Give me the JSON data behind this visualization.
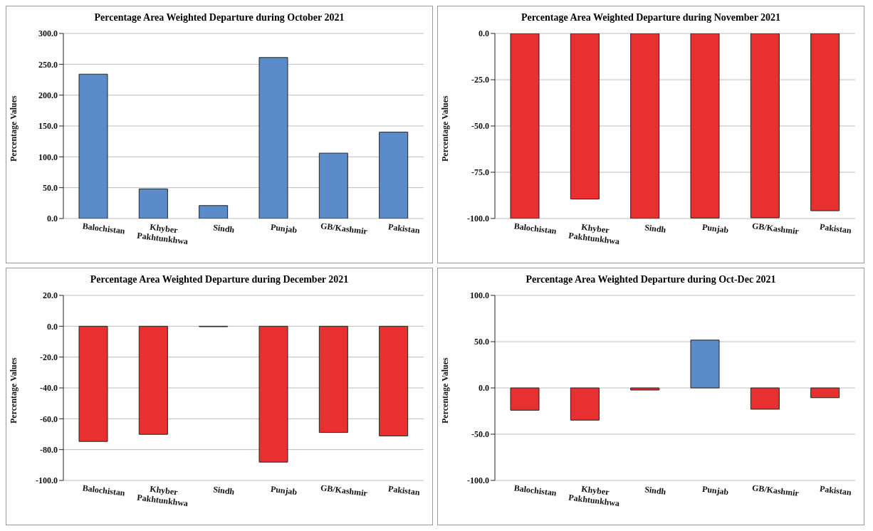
{
  "chart_data": [
    {
      "type": "bar",
      "title": "Percentage Area Weighted Departure during October 2021",
      "ylabel": "Percentage Values",
      "categories": [
        "Balochistan",
        "Khyber Pakhtunkhwa",
        "Sindh",
        "Punjab",
        "GB/Kashmir",
        "Pakistan"
      ],
      "values": [
        234,
        48,
        21,
        261,
        106,
        140
      ],
      "colors": [
        "#5b8bc8",
        "#5b8bc8",
        "#5b8bc8",
        "#5b8bc8",
        "#5b8bc8",
        "#5b8bc8"
      ],
      "ylim": [
        0,
        300
      ],
      "yticks": [
        {
          "value": 0,
          "label": "0.0"
        },
        {
          "value": 50,
          "label": "50.0"
        },
        {
          "value": 100,
          "label": "100.0"
        },
        {
          "value": 150,
          "label": "150.0"
        },
        {
          "value": 200,
          "label": "200.0"
        },
        {
          "value": 250,
          "label": "250.0"
        },
        {
          "value": 300,
          "label": "300.0"
        }
      ],
      "grid": "y"
    },
    {
      "type": "bar",
      "title": "Percentage Area Weighted Departure during November 2021",
      "ylabel": "Percentage Values",
      "categories": [
        "Balochistan",
        "Khyber Pakhtunkhwa",
        "Sindh",
        "Punjab",
        "GB/Kashmir",
        "Pakistan"
      ],
      "values": [
        -100,
        -89.5,
        -100,
        -99.7,
        -99.6,
        -95.8
      ],
      "colors": [
        "#e83030",
        "#e83030",
        "#e83030",
        "#e83030",
        "#e83030",
        "#e83030"
      ],
      "ylim": [
        -100,
        0
      ],
      "yticks": [
        {
          "value": -100,
          "label": "-100.0"
        },
        {
          "value": -75,
          "label": "-75.0"
        },
        {
          "value": -50,
          "label": "-50.0"
        },
        {
          "value": -25,
          "label": "-25.0"
        },
        {
          "value": 0,
          "label": "0.0"
        }
      ],
      "grid": "y"
    },
    {
      "type": "bar",
      "title": "Percentage Area Weighted Departure during December 2021",
      "ylabel": "Percentage Values",
      "categories": [
        "Balochistan",
        "Khyber Pakhtunkhwa",
        "Sindh",
        "Punjab",
        "GB/Kashmir",
        "Pakistan"
      ],
      "values": [
        -74.7,
        -70.1,
        -0.3,
        -88.1,
        -68.9,
        -71.1
      ],
      "colors": [
        "#e83030",
        "#e83030",
        "#e83030",
        "#e83030",
        "#e83030",
        "#e83030"
      ],
      "ylim": [
        -100,
        20
      ],
      "yticks": [
        {
          "value": -100,
          "label": "-100.0"
        },
        {
          "value": -80,
          "label": "-80.0"
        },
        {
          "value": -60,
          "label": "-60.0"
        },
        {
          "value": -40,
          "label": "-40.0"
        },
        {
          "value": -20,
          "label": "-20.0"
        },
        {
          "value": 0,
          "label": "0.0"
        },
        {
          "value": 20,
          "label": "20.0"
        }
      ],
      "grid": "y"
    },
    {
      "type": "bar",
      "title": "Percentage Area Weighted Departure during Oct-Dec 2021",
      "ylabel": "Percentage Values",
      "categories": [
        "Balochistan",
        "Khyber Pakhtunkhwa",
        "Sindh",
        "Punjab",
        "GB/Kashmir",
        "Pakistan"
      ],
      "values": [
        -24.1,
        -34.8,
        -2.3,
        51.7,
        -23,
        -10.6
      ],
      "colors": [
        "#e83030",
        "#e83030",
        "#e83030",
        "#5b8bc8",
        "#e83030",
        "#e83030"
      ],
      "ylim": [
        -100,
        100
      ],
      "yticks": [
        {
          "value": -100,
          "label": "-100.0"
        },
        {
          "value": -50,
          "label": "-50.0"
        },
        {
          "value": 0,
          "label": "0.0"
        },
        {
          "value": 50,
          "label": "50.0"
        },
        {
          "value": 100,
          "label": "100.0"
        }
      ],
      "grid": "y"
    }
  ]
}
